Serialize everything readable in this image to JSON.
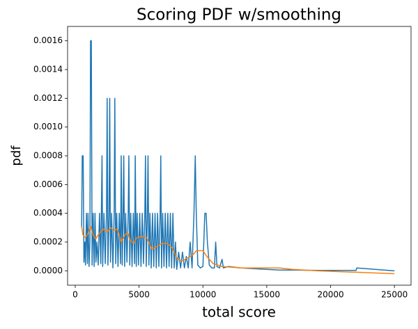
{
  "chart_data": {
    "type": "line",
    "title": "Scoring PDF w/smoothing",
    "xlabel": "total score",
    "ylabel": "pdf",
    "xlim": [
      -600,
      26300
    ],
    "xticks": [
      0,
      5000,
      10000,
      15000,
      20000,
      25000
    ],
    "ylim": [
      -0.0001,
      0.0017
    ],
    "yticks": [
      {
        "value": 0,
        "label": "0.0000"
      },
      {
        "value": 0.0002,
        "label": "0.0002"
      },
      {
        "value": 0.0004,
        "label": "0.0004"
      },
      {
        "value": 0.0006,
        "label": "0.0006"
      },
      {
        "value": 0.0008,
        "label": "0.0008"
      },
      {
        "value": 0.001,
        "label": "0.0010"
      },
      {
        "value": 0.0012,
        "label": "0.0012"
      },
      {
        "value": 0.0014,
        "label": "0.0014"
      },
      {
        "value": 0.0016,
        "label": "0.0016"
      }
    ],
    "series": [
      {
        "color": "#1f77b4",
        "x": [
          500,
          550,
          620,
          680,
          750,
          800,
          880,
          950,
          1000,
          1080,
          1150,
          1200,
          1260,
          1320,
          1400,
          1480,
          1550,
          1620,
          1700,
          1800,
          1900,
          2000,
          2100,
          2150,
          2250,
          2350,
          2450,
          2500,
          2560,
          2650,
          2700,
          2760,
          2850,
          2950,
          3050,
          3100,
          3170,
          3250,
          3350,
          3450,
          3550,
          3600,
          3680,
          3750,
          3800,
          3870,
          3950,
          4050,
          4150,
          4200,
          4270,
          4350,
          4450,
          4550,
          4650,
          4700,
          4780,
          4850,
          4950,
          5050,
          5150,
          5250,
          5350,
          5450,
          5500,
          5560,
          5650,
          5700,
          5770,
          5850,
          5950,
          6050,
          6150,
          6250,
          6350,
          6450,
          6550,
          6650,
          6700,
          6760,
          6850,
          6950,
          7050,
          7150,
          7250,
          7350,
          7450,
          7550,
          7650,
          7750,
          7850,
          7950,
          8100,
          8250,
          8400,
          8550,
          8700,
          8850,
          9000,
          9150,
          9300,
          9400,
          9480,
          9600,
          9800,
          10000,
          10150,
          10250,
          10350,
          10500,
          10700,
          10900,
          11000,
          11100,
          11300,
          11500,
          11600,
          12000,
          13000,
          15000,
          16000,
          17000,
          19000,
          22000,
          22050,
          25000
        ],
        "values": [
          0.0003,
          0.0008,
          0.0008,
          6e-05,
          0.0002,
          4e-05,
          0.0004,
          5e-05,
          0.0004,
          3e-05,
          0.0002,
          0.0016,
          0.0016,
          4e-05,
          0.0004,
          3e-05,
          0.0004,
          6e-05,
          0.0002,
          4e-05,
          0.0004,
          5e-05,
          0.0008,
          3e-05,
          0.0004,
          5e-05,
          0.0004,
          0.0012,
          4e-05,
          0.0004,
          0.0012,
          6e-05,
          0.0004,
          2e-05,
          0.0004,
          0.0012,
          5e-05,
          0.0004,
          3e-05,
          0.0004,
          5e-05,
          0.0008,
          4e-05,
          0.0004,
          0.0008,
          3e-05,
          0.0004,
          6e-05,
          0.0004,
          0.0008,
          4e-05,
          0.0004,
          3e-05,
          0.0004,
          5e-05,
          0.0008,
          3e-05,
          0.0004,
          4e-05,
          0.0004,
          3e-05,
          0.0004,
          5e-05,
          0.0004,
          0.0008,
          3e-05,
          0.0004,
          0.0008,
          4e-05,
          0.0004,
          2e-05,
          0.0004,
          3e-05,
          0.0004,
          2e-05,
          0.0004,
          3e-05,
          0.0004,
          0.0008,
          2e-05,
          0.0004,
          3e-05,
          0.0004,
          2e-05,
          0.0004,
          3e-05,
          0.0004,
          2e-05,
          0.0004,
          2e-05,
          0.0002,
          1e-05,
          0.00013,
          2e-05,
          0.00013,
          2e-05,
          0.0001,
          2e-05,
          0.0002,
          2e-05,
          0.0004,
          0.0008,
          0.0004,
          4e-05,
          2e-05,
          3e-05,
          0.0004,
          0.0004,
          0.0002,
          4e-05,
          2e-05,
          2e-05,
          0.0002,
          3e-05,
          2e-05,
          8e-05,
          2e-05,
          3e-05,
          2e-05,
          1e-05,
          5e-06,
          5e-06,
          3e-06,
          3e-06,
          2e-05,
          0
        ]
      },
      {
        "color": "#ff7f0e",
        "x": [
          500,
          600,
          800,
          1000,
          1200,
          1400,
          1600,
          1800,
          2000,
          2200,
          2500,
          2800,
          3000,
          3300,
          3600,
          3900,
          4100,
          4300,
          4600,
          4800,
          5200,
          5600,
          6000,
          6400,
          6800,
          7200,
          7600,
          8000,
          8400,
          8800,
          9200,
          9500,
          10000,
          10300,
          10800,
          11500,
          13000,
          16000,
          17000,
          19000,
          22000,
          25000
        ],
        "values": [
          0.00031,
          0.00025,
          0.00023,
          0.00026,
          0.00031,
          0.00025,
          0.00022,
          0.00025,
          0.00027,
          0.00029,
          0.00027,
          0.0003,
          0.00028,
          0.00029,
          0.0002,
          0.00025,
          0.00027,
          0.00021,
          0.00019,
          0.00023,
          0.00024,
          0.00023,
          0.00015,
          0.00017,
          0.00019,
          0.00019,
          0.00016,
          8e-05,
          7e-05,
          9e-05,
          0.00011,
          0.00014,
          0.00014,
          0.0001,
          5e-05,
          3e-05,
          2e-05,
          2e-05,
          1e-05,
          0,
          -1e-05,
          -2e-05
        ]
      }
    ]
  }
}
